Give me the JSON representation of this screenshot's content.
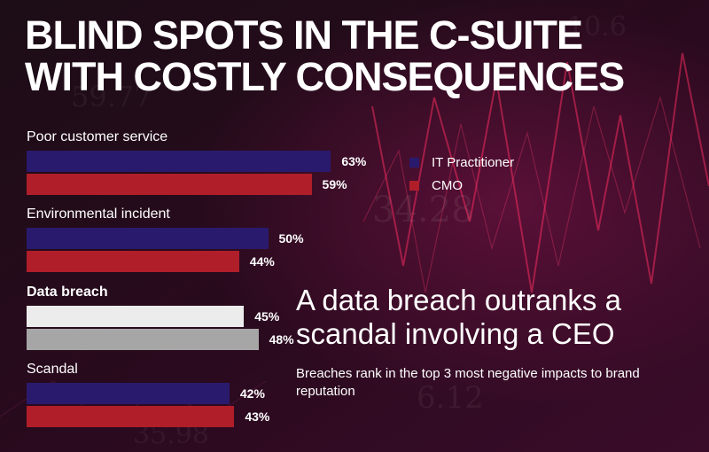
{
  "title_line1": "BLIND SPOTS IN THE C-SUITE",
  "title_line2": "WITH COSTLY CONSEQUENCES",
  "colors": {
    "it_practitioner": "#2a1a6e",
    "cmo": "#b01e2a",
    "highlight_it": "#ececec",
    "highlight_cmo": "#a6a6a6"
  },
  "chart_data": {
    "type": "bar",
    "orientation": "horizontal",
    "categories": [
      "Poor customer service",
      "Environmental incident",
      "Data breach",
      "Scandal"
    ],
    "highlighted_category": "Data breach",
    "series": [
      {
        "name": "IT Practitioner",
        "values": [
          63,
          50,
          45,
          42
        ],
        "labels": [
          "63%",
          "50%",
          "45%",
          "42%"
        ]
      },
      {
        "name": "CMO",
        "values": [
          59,
          44,
          48,
          43
        ],
        "labels": [
          "59%",
          "44%",
          "48%",
          "43%"
        ]
      }
    ],
    "unit": "%",
    "legend_position": "right"
  },
  "headline": "A data breach outranks a scandal involving a CEO",
  "subtext": "Breaches rank in the top 3 most negative impacts to brand reputation"
}
